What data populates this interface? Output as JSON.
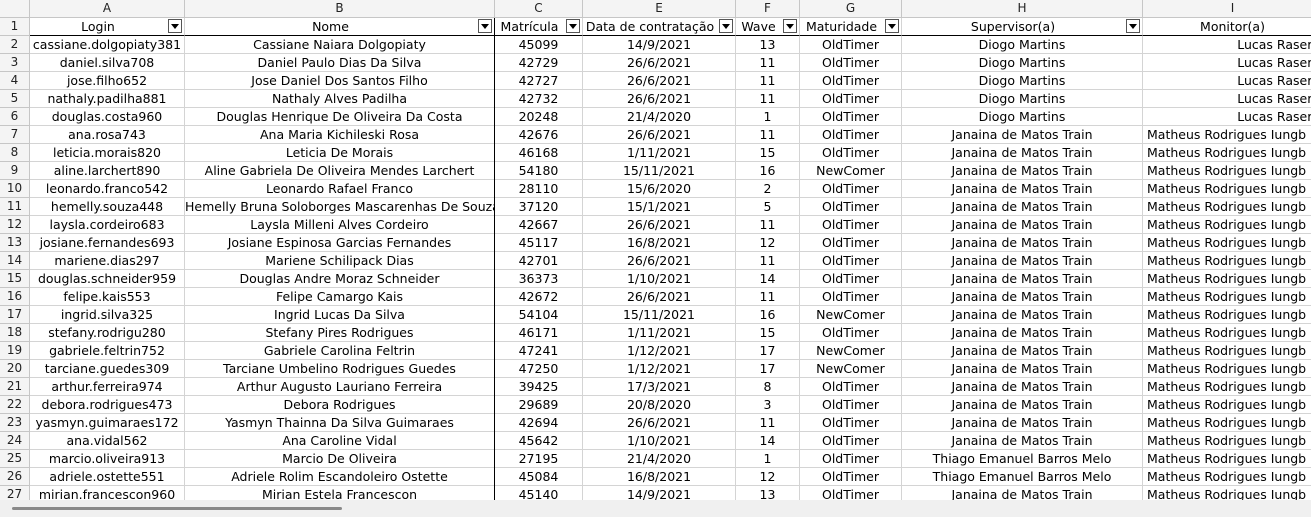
{
  "column_letters": [
    "A",
    "B",
    "C",
    "E",
    "F",
    "G",
    "H",
    "I"
  ],
  "row_numbers": [
    "1",
    "2",
    "3",
    "4",
    "5",
    "6",
    "7",
    "8",
    "9",
    "10",
    "11",
    "12",
    "13",
    "14",
    "15",
    "16",
    "17",
    "18",
    "19",
    "20",
    "21",
    "22",
    "23",
    "24",
    "25",
    "26",
    "27"
  ],
  "headers": [
    "Login",
    "Nome",
    "Matrícula",
    "Data de contratação",
    "Wave",
    "Maturidade",
    "Supervisor(a)",
    "Monitor(a)"
  ],
  "rows": [
    [
      "cassiane.dolgopiaty381",
      "Cassiane Naiara Dolgopiaty",
      "45099",
      "14/9/2021",
      "13",
      "OldTimer",
      "Diogo Martins",
      "Lucas Rasera"
    ],
    [
      "daniel.silva708",
      "Daniel Paulo Dias Da Silva",
      "42729",
      "26/6/2021",
      "11",
      "OldTimer",
      "Diogo Martins",
      "Lucas Rasera"
    ],
    [
      "jose.filho652",
      "Jose Daniel Dos Santos Filho",
      "42727",
      "26/6/2021",
      "11",
      "OldTimer",
      "Diogo Martins",
      "Lucas Rasera"
    ],
    [
      "nathaly.padilha881",
      "Nathaly Alves Padilha",
      "42732",
      "26/6/2021",
      "11",
      "OldTimer",
      "Diogo Martins",
      "Lucas Rasera"
    ],
    [
      "douglas.costa960",
      "Douglas Henrique De Oliveira Da Costa",
      "20248",
      "21/4/2020",
      "1",
      "OldTimer",
      "Diogo Martins",
      "Lucas Rasera"
    ],
    [
      "ana.rosa743",
      "Ana Maria Kichileski Rosa",
      "42676",
      "26/6/2021",
      "11",
      "OldTimer",
      "Janaina de Matos Train",
      "Matheus Rodrigues Iungb"
    ],
    [
      "leticia.morais820",
      "Leticia De Morais",
      "46168",
      "1/11/2021",
      "15",
      "OldTimer",
      "Janaina de Matos Train",
      "Matheus Rodrigues Iungb"
    ],
    [
      "aline.larchert890",
      "Aline Gabriela De Oliveira Mendes Larchert",
      "54180",
      "15/11/2021",
      "16",
      "NewComer",
      "Janaina de Matos Train",
      "Matheus Rodrigues Iungb"
    ],
    [
      "leonardo.franco542",
      "Leonardo Rafael Franco",
      "28110",
      "15/6/2020",
      "2",
      "OldTimer",
      "Janaina de Matos Train",
      "Matheus Rodrigues Iungb"
    ],
    [
      "hemelly.souza448",
      "Hemelly Bruna Soloborges Mascarenhas De Souza",
      "37120",
      "15/1/2021",
      "5",
      "OldTimer",
      "Janaina de Matos Train",
      "Matheus Rodrigues Iungb"
    ],
    [
      "laysla.cordeiro683",
      "Laysla Milleni Alves Cordeiro",
      "42667",
      "26/6/2021",
      "11",
      "OldTimer",
      "Janaina de Matos Train",
      "Matheus Rodrigues Iungb"
    ],
    [
      "josiane.fernandes693",
      "Josiane Espinosa Garcias Fernandes",
      "45117",
      "16/8/2021",
      "12",
      "OldTimer",
      "Janaina de Matos Train",
      "Matheus Rodrigues Iungb"
    ],
    [
      "mariene.dias297",
      "Mariene Schilipack Dias",
      "42701",
      "26/6/2021",
      "11",
      "OldTimer",
      "Janaina de Matos Train",
      "Matheus Rodrigues Iungb"
    ],
    [
      "douglas.schneider959",
      "Douglas Andre Moraz Schneider",
      "36373",
      "1/10/2021",
      "14",
      "OldTimer",
      "Janaina de Matos Train",
      "Matheus Rodrigues Iungb"
    ],
    [
      "felipe.kais553",
      "Felipe Camargo Kais",
      "42672",
      "26/6/2021",
      "11",
      "OldTimer",
      "Janaina de Matos Train",
      "Matheus Rodrigues Iungb"
    ],
    [
      "ingrid.silva325",
      "Ingrid Lucas Da Silva",
      "54104",
      "15/11/2021",
      "16",
      "NewComer",
      "Janaina de Matos Train",
      "Matheus Rodrigues Iungb"
    ],
    [
      "stefany.rodrigu280",
      "Stefany Pires Rodrigues",
      "46171",
      "1/11/2021",
      "15",
      "OldTimer",
      "Janaina de Matos Train",
      "Matheus Rodrigues Iungb"
    ],
    [
      "gabriele.feltrin752",
      "Gabriele Carolina Feltrin",
      "47241",
      "1/12/2021",
      "17",
      "NewComer",
      "Janaina de Matos Train",
      "Matheus Rodrigues Iungb"
    ],
    [
      "tarciane.guedes309",
      "Tarciane Umbelino Rodrigues Guedes",
      "47250",
      "1/12/2021",
      "17",
      "NewComer",
      "Janaina de Matos Train",
      "Matheus Rodrigues Iungb"
    ],
    [
      "arthur.ferreira974",
      "Arthur Augusto Lauriano Ferreira",
      "39425",
      "17/3/2021",
      "8",
      "OldTimer",
      "Janaina de Matos Train",
      "Matheus Rodrigues Iungb"
    ],
    [
      "debora.rodrigues473",
      "Debora Rodrigues",
      "29689",
      "20/8/2020",
      "3",
      "OldTimer",
      "Janaina de Matos Train",
      "Matheus Rodrigues Iungb"
    ],
    [
      "yasmyn.guimaraes172",
      "Yasmyn Thainna Da Silva Guimaraes",
      "42694",
      "26/6/2021",
      "11",
      "OldTimer",
      "Janaina de Matos Train",
      "Matheus Rodrigues Iungb"
    ],
    [
      "ana.vidal562",
      "Ana Caroline Vidal",
      "45642",
      "1/10/2021",
      "14",
      "OldTimer",
      "Janaina de Matos Train",
      "Matheus Rodrigues Iungb"
    ],
    [
      "marcio.oliveira913",
      "Marcio De Oliveira",
      "27195",
      "21/4/2020",
      "1",
      "OldTimer",
      "Thiago Emanuel Barros Melo",
      "Matheus Rodrigues Iungb"
    ],
    [
      "adriele.ostette551",
      "Adriele Rolim Escandoleiro Ostette",
      "45084",
      "16/8/2021",
      "12",
      "OldTimer",
      "Thiago Emanuel Barros Melo",
      "Matheus Rodrigues Iungb"
    ],
    [
      "mirian.francescon960",
      "Mirian Estela Francescon",
      "45140",
      "14/9/2021",
      "13",
      "OldTimer",
      "Janaina de Matos Train",
      "Matheus Rodrigues Iungb"
    ]
  ]
}
